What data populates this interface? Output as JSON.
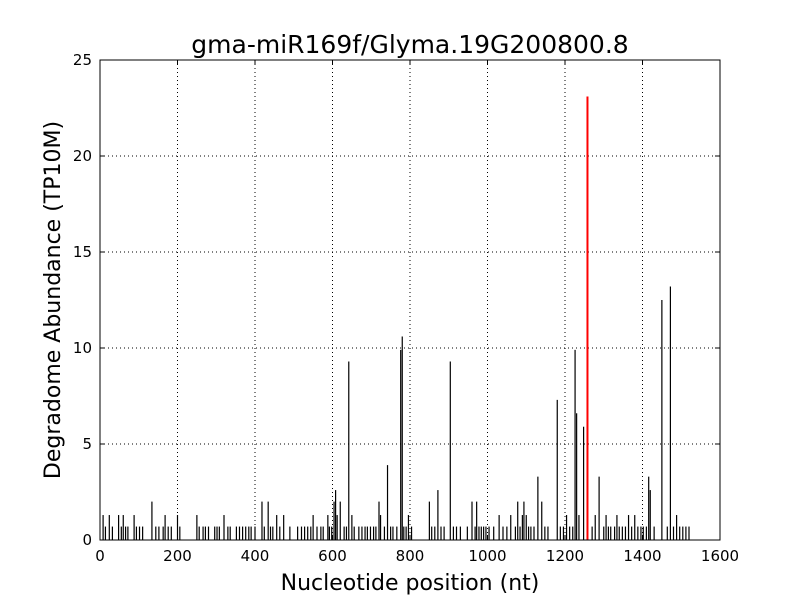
{
  "chart_data": {
    "type": "bar",
    "title": "gma-miR169f/Glyma.19G200800.8",
    "xlabel": "Nucleotide position (nt)",
    "ylabel": "Degradome Abundance (TP10M)",
    "xlim": [
      0,
      1600
    ],
    "ylim": [
      0,
      25
    ],
    "xticks": [
      "0",
      "200",
      "400",
      "600",
      "800",
      "1000",
      "1200",
      "1400",
      "1600"
    ],
    "yticks": [
      "0",
      "5",
      "10",
      "15",
      "20",
      "25"
    ],
    "grid": true,
    "colors": {
      "background": "#ffffff",
      "bars": "#000000",
      "highlight": "#ff0000"
    },
    "series": [
      {
        "values": [
          [
            8,
            1.3
          ],
          [
            14,
            0.7
          ],
          [
            24,
            1.3
          ],
          [
            32,
            0.7
          ],
          [
            48,
            1.3
          ],
          [
            55,
            0.7
          ],
          [
            60,
            1.3
          ],
          [
            66,
            0.7
          ],
          [
            72,
            0.7
          ],
          [
            88,
            1.3
          ],
          [
            94,
            0.7
          ],
          [
            102,
            0.7
          ],
          [
            110,
            0.7
          ],
          [
            134,
            2.0
          ],
          [
            144,
            0.7
          ],
          [
            152,
            0.7
          ],
          [
            163,
            0.7
          ],
          [
            168,
            1.3
          ],
          [
            176,
            0.7
          ],
          [
            184,
            0.7
          ],
          [
            200,
            1.3
          ],
          [
            206,
            0.7
          ],
          [
            250,
            1.3
          ],
          [
            256,
            0.7
          ],
          [
            266,
            0.7
          ],
          [
            272,
            0.7
          ],
          [
            280,
            0.7
          ],
          [
            296,
            0.7
          ],
          [
            302,
            0.7
          ],
          [
            308,
            0.7
          ],
          [
            320,
            1.3
          ],
          [
            330,
            0.7
          ],
          [
            336,
            0.7
          ],
          [
            352,
            0.7
          ],
          [
            360,
            0.7
          ],
          [
            368,
            0.7
          ],
          [
            376,
            0.7
          ],
          [
            384,
            0.7
          ],
          [
            390,
            0.7
          ],
          [
            400,
            0.7
          ],
          [
            418,
            2.0
          ],
          [
            424,
            0.7
          ],
          [
            434,
            2.0
          ],
          [
            440,
            0.7
          ],
          [
            446,
            0.7
          ],
          [
            456,
            1.3
          ],
          [
            464,
            0.7
          ],
          [
            474,
            1.3
          ],
          [
            490,
            0.7
          ],
          [
            510,
            0.7
          ],
          [
            520,
            0.7
          ],
          [
            528,
            0.7
          ],
          [
            536,
            0.7
          ],
          [
            544,
            0.7
          ],
          [
            550,
            1.3
          ],
          [
            560,
            0.7
          ],
          [
            570,
            0.7
          ],
          [
            576,
            0.7
          ],
          [
            588,
            1.3
          ],
          [
            592,
            0.7
          ],
          [
            598,
            0.7
          ],
          [
            604,
            2.0
          ],
          [
            608,
            2.6
          ],
          [
            612,
            1.3
          ],
          [
            620,
            2.0
          ],
          [
            630,
            0.7
          ],
          [
            636,
            0.7
          ],
          [
            642,
            9.3
          ],
          [
            650,
            1.3
          ],
          [
            656,
            0.7
          ],
          [
            668,
            0.7
          ],
          [
            676,
            0.7
          ],
          [
            684,
            0.7
          ],
          [
            690,
            0.7
          ],
          [
            698,
            0.7
          ],
          [
            706,
            0.7
          ],
          [
            712,
            0.7
          ],
          [
            720,
            2.0
          ],
          [
            724,
            1.3
          ],
          [
            734,
            0.7
          ],
          [
            742,
            3.9
          ],
          [
            750,
            0.7
          ],
          [
            756,
            0.7
          ],
          [
            766,
            0.7
          ],
          [
            776,
            9.9
          ],
          [
            780,
            10.6
          ],
          [
            784,
            0.7
          ],
          [
            790,
            0.7
          ],
          [
            796,
            1.3
          ],
          [
            804,
            0.7
          ],
          [
            850,
            2.0
          ],
          [
            856,
            0.7
          ],
          [
            864,
            0.7
          ],
          [
            872,
            2.6
          ],
          [
            880,
            0.7
          ],
          [
            888,
            0.7
          ],
          [
            904,
            9.3
          ],
          [
            912,
            0.7
          ],
          [
            920,
            0.7
          ],
          [
            930,
            0.7
          ],
          [
            948,
            0.7
          ],
          [
            960,
            2.0
          ],
          [
            968,
            0.7
          ],
          [
            972,
            2.0
          ],
          [
            978,
            0.7
          ],
          [
            984,
            0.7
          ],
          [
            990,
            0.7
          ],
          [
            996,
            0.7
          ],
          [
            1004,
            0.7
          ],
          [
            1016,
            0.7
          ],
          [
            1030,
            1.3
          ],
          [
            1040,
            0.7
          ],
          [
            1050,
            0.7
          ],
          [
            1060,
            1.3
          ],
          [
            1072,
            0.7
          ],
          [
            1078,
            2.0
          ],
          [
            1084,
            0.7
          ],
          [
            1090,
            1.3
          ],
          [
            1094,
            2.0
          ],
          [
            1100,
            1.3
          ],
          [
            1106,
            0.7
          ],
          [
            1112,
            0.7
          ],
          [
            1120,
            0.7
          ],
          [
            1130,
            3.3
          ],
          [
            1140,
            2.0
          ],
          [
            1148,
            0.7
          ],
          [
            1156,
            0.7
          ],
          [
            1180,
            7.3
          ],
          [
            1188,
            0.7
          ],
          [
            1196,
            0.7
          ],
          [
            1204,
            1.3
          ],
          [
            1212,
            0.7
          ],
          [
            1220,
            0.7
          ],
          [
            1226,
            9.9
          ],
          [
            1230,
            6.6
          ],
          [
            1236,
            1.3
          ],
          [
            1248,
            5.9
          ],
          [
            1270,
            0.7
          ],
          [
            1278,
            1.3
          ],
          [
            1288,
            3.3
          ],
          [
            1300,
            0.7
          ],
          [
            1306,
            1.3
          ],
          [
            1312,
            0.7
          ],
          [
            1318,
            0.7
          ],
          [
            1328,
            0.7
          ],
          [
            1334,
            1.3
          ],
          [
            1340,
            0.7
          ],
          [
            1348,
            0.7
          ],
          [
            1356,
            0.7
          ],
          [
            1364,
            1.3
          ],
          [
            1372,
            0.7
          ],
          [
            1380,
            1.3
          ],
          [
            1388,
            0.7
          ],
          [
            1396,
            0.7
          ],
          [
            1402,
            0.7
          ],
          [
            1410,
            0.7
          ],
          [
            1416,
            3.3
          ],
          [
            1420,
            2.6
          ],
          [
            1430,
            0.7
          ],
          [
            1450,
            12.5
          ],
          [
            1464,
            0.7
          ],
          [
            1472,
            13.2
          ],
          [
            1480,
            0.7
          ],
          [
            1488,
            1.3
          ],
          [
            1496,
            0.7
          ],
          [
            1504,
            0.7
          ],
          [
            1512,
            0.7
          ],
          [
            1520,
            0.7
          ]
        ]
      },
      {
        "highlight": true,
        "values": [
          [
            1258,
            23.1
          ]
        ]
      }
    ]
  }
}
